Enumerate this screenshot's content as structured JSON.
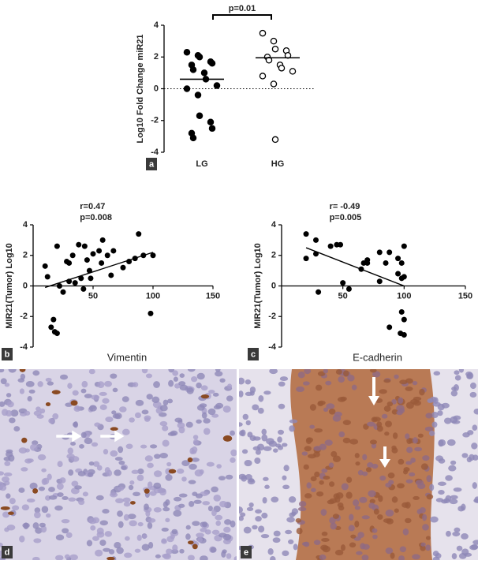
{
  "chart_data": [
    {
      "type": "strip",
      "panel_label": "a",
      "ylabel": "Log10 Fold Change miR21",
      "categories": [
        "LG",
        "HG"
      ],
      "series": [
        {
          "values": [
            2.3,
            2.1,
            2.0,
            1.7,
            1.6,
            1.5,
            1.2,
            1.0,
            0.6,
            0.2,
            0.0,
            -0.4,
            -1.7,
            -2.1,
            -2.5,
            -2.8,
            -3.1
          ],
          "color": "#000000",
          "filled": true,
          "mean": 0.6
        },
        {
          "values": [
            3.5,
            3.0,
            2.5,
            2.4,
            2.1,
            2.0,
            1.8,
            1.5,
            1.3,
            1.1,
            0.8,
            0.3,
            -3.2
          ],
          "color": "#000000",
          "filled": false,
          "mean": 1.95
        }
      ],
      "annotation": "p=0.01",
      "ylim": [
        -4,
        4
      ],
      "yticks": [
        -4,
        -2,
        0,
        2,
        4
      ]
    },
    {
      "type": "scatter",
      "panel_label": "b",
      "xlabel": "Vimentin",
      "ylabel": "MIR21(Tumor) Log10",
      "annotations": [
        "r=0.47",
        "p=0.008"
      ],
      "color": "#000000",
      "x": [
        10,
        12,
        15,
        17,
        18,
        20,
        20,
        22,
        25,
        28,
        30,
        30,
        33,
        35,
        38,
        40,
        42,
        43,
        45,
        47,
        48,
        50,
        55,
        57,
        58,
        62,
        65,
        67,
        75,
        80,
        85,
        88,
        92,
        98,
        100
      ],
      "values": [
        1.3,
        0.6,
        -2.7,
        -2.2,
        -3.0,
        -3.1,
        2.6,
        0.0,
        -0.4,
        1.6,
        0.3,
        1.5,
        2.0,
        0.2,
        2.7,
        0.5,
        -0.2,
        2.6,
        1.7,
        1.0,
        0.5,
        2.1,
        2.3,
        1.5,
        3.0,
        2.0,
        0.7,
        2.3,
        1.2,
        1.6,
        1.8,
        3.4,
        2.0,
        -1.8,
        2.0
      ],
      "fit": {
        "x": [
          10,
          100
        ],
        "y": [
          -0.1,
          2.2
        ]
      },
      "xlim": [
        0,
        150
      ],
      "xticks": [
        50,
        100,
        150
      ],
      "ylim": [
        -4,
        4
      ],
      "yticks": [
        -4,
        -2,
        0,
        2,
        4
      ]
    },
    {
      "type": "scatter",
      "panel_label": "c",
      "xlabel": "E-cadherin",
      "ylabel": "MIR21(Tumor) Log10",
      "annotations": [
        "r= -0.49",
        "p=0.005"
      ],
      "color": "#000000",
      "x": [
        20,
        20,
        28,
        28,
        30,
        40,
        45,
        48,
        50,
        55,
        65,
        67,
        70,
        70,
        80,
        80,
        85,
        88,
        88,
        95,
        95,
        97,
        98,
        98,
        98,
        100,
        100,
        100,
        100
      ],
      "values": [
        3.4,
        1.8,
        3.0,
        2.1,
        -0.4,
        2.6,
        2.7,
        2.7,
        0.2,
        -0.2,
        1.1,
        1.5,
        1.7,
        1.5,
        2.2,
        0.3,
        1.5,
        -2.7,
        2.2,
        0.8,
        1.8,
        -3.1,
        0.5,
        1.5,
        -1.7,
        2.6,
        -2.2,
        -3.2,
        0.6
      ],
      "fit": {
        "x": [
          20,
          100
        ],
        "y": [
          2.5,
          0.0
        ]
      },
      "xlim": [
        0,
        150
      ],
      "xticks": [
        50,
        100,
        150
      ],
      "ylim": [
        -4,
        4
      ],
      "yticks": [
        -4,
        -2,
        0,
        2,
        4
      ]
    }
  ],
  "image_panels": [
    {
      "label": "d"
    },
    {
      "label": "e"
    }
  ]
}
